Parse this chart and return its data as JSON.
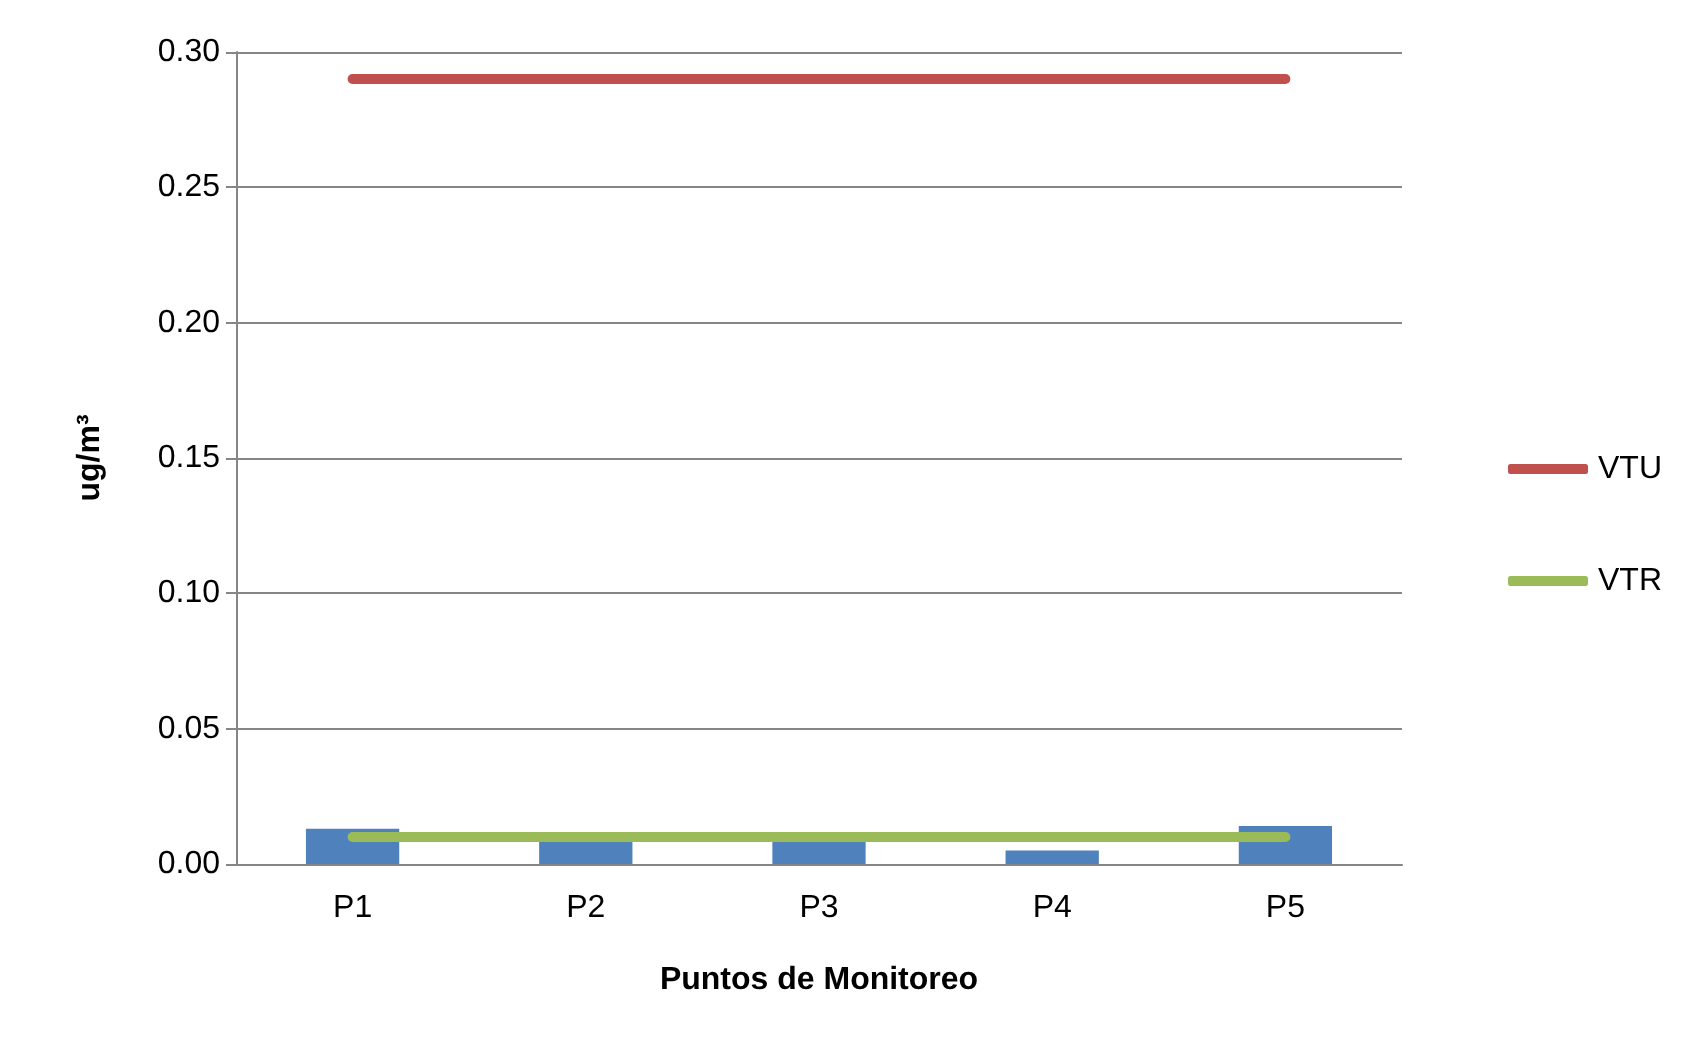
{
  "chart_data": {
    "type": "bar",
    "xlabel": "Puntos de Monitoreo",
    "ylabel": "ug/m³",
    "categories": [
      "P1",
      "P2",
      "P3",
      "P4",
      "P5"
    ],
    "series": [
      {
        "color": "#4f81bd",
        "values": [
          0.013,
          0.01,
          0.01,
          0.005,
          0.014
        ]
      },
      {
        "type": "line",
        "name": "VTU",
        "color": "#c0504d",
        "values": [
          0.29,
          0.29,
          0.29,
          0.29,
          0.29
        ]
      },
      {
        "type": "line",
        "name": "VTR",
        "color": "#9bbb59",
        "values": [
          0.01,
          0.01,
          0.01,
          0.01,
          0.01
        ]
      }
    ],
    "ylim": [
      0,
      0.3
    ],
    "yticks": [
      {
        "value": 0,
        "label": "0.00"
      },
      0.05,
      {
        "value": 0.1,
        "label": "0.10"
      },
      0.15,
      {
        "value": 0.2,
        "label": "0.20"
      },
      0.25,
      {
        "value": 0.3,
        "label": "0.30"
      }
    ],
    "grid": "y",
    "legend": "right",
    "marker": "none"
  }
}
